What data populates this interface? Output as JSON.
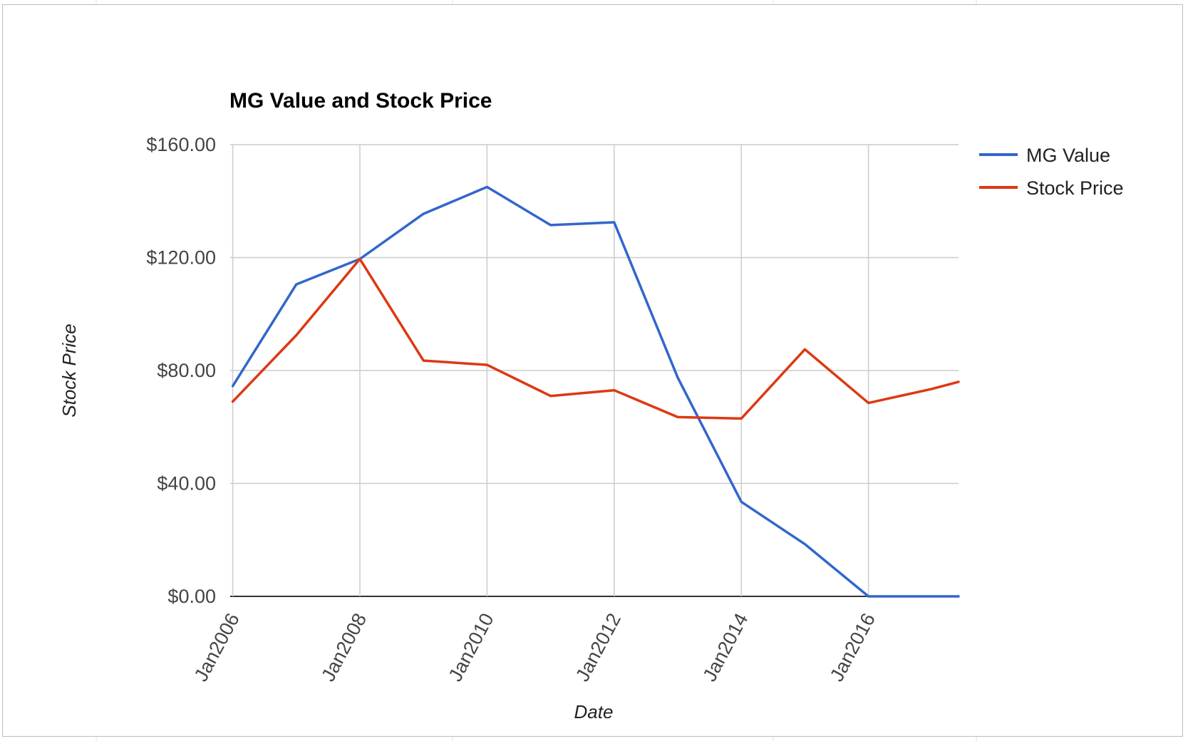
{
  "chart_data": {
    "type": "line",
    "title": "MG Value and Stock Price",
    "xlabel": "Date",
    "ylabel": "Stock Price",
    "ylim": [
      0,
      160
    ],
    "y_ticks": [
      "$0.00",
      "$40.00",
      "$80.00",
      "$120.00",
      "$160.00"
    ],
    "x_ticks": [
      "Jan2006",
      "Jan2008",
      "Jan2010",
      "Jan2012",
      "Jan2014",
      "Jan2016"
    ],
    "grid": true,
    "legend_position": "right",
    "x": [
      "2006-01",
      "2007-01",
      "2008-01",
      "2009-01",
      "2010-01",
      "2011-01",
      "2012-01",
      "2013-01",
      "2014-01",
      "2015-01",
      "2016-01",
      "2017-01",
      "2017-06"
    ],
    "series": [
      {
        "name": "MG Value",
        "color": "#3366cc",
        "values": [
          74.5,
          110.5,
          119.5,
          135.5,
          145,
          131.5,
          132.5,
          77.5,
          33.5,
          18.5,
          0,
          0,
          0
        ]
      },
      {
        "name": "Stock Price",
        "color": "#dc3912",
        "values": [
          69,
          92.5,
          119.5,
          83.5,
          82,
          71,
          73,
          63.5,
          63,
          87.5,
          68.5,
          73.5,
          76
        ]
      }
    ]
  }
}
